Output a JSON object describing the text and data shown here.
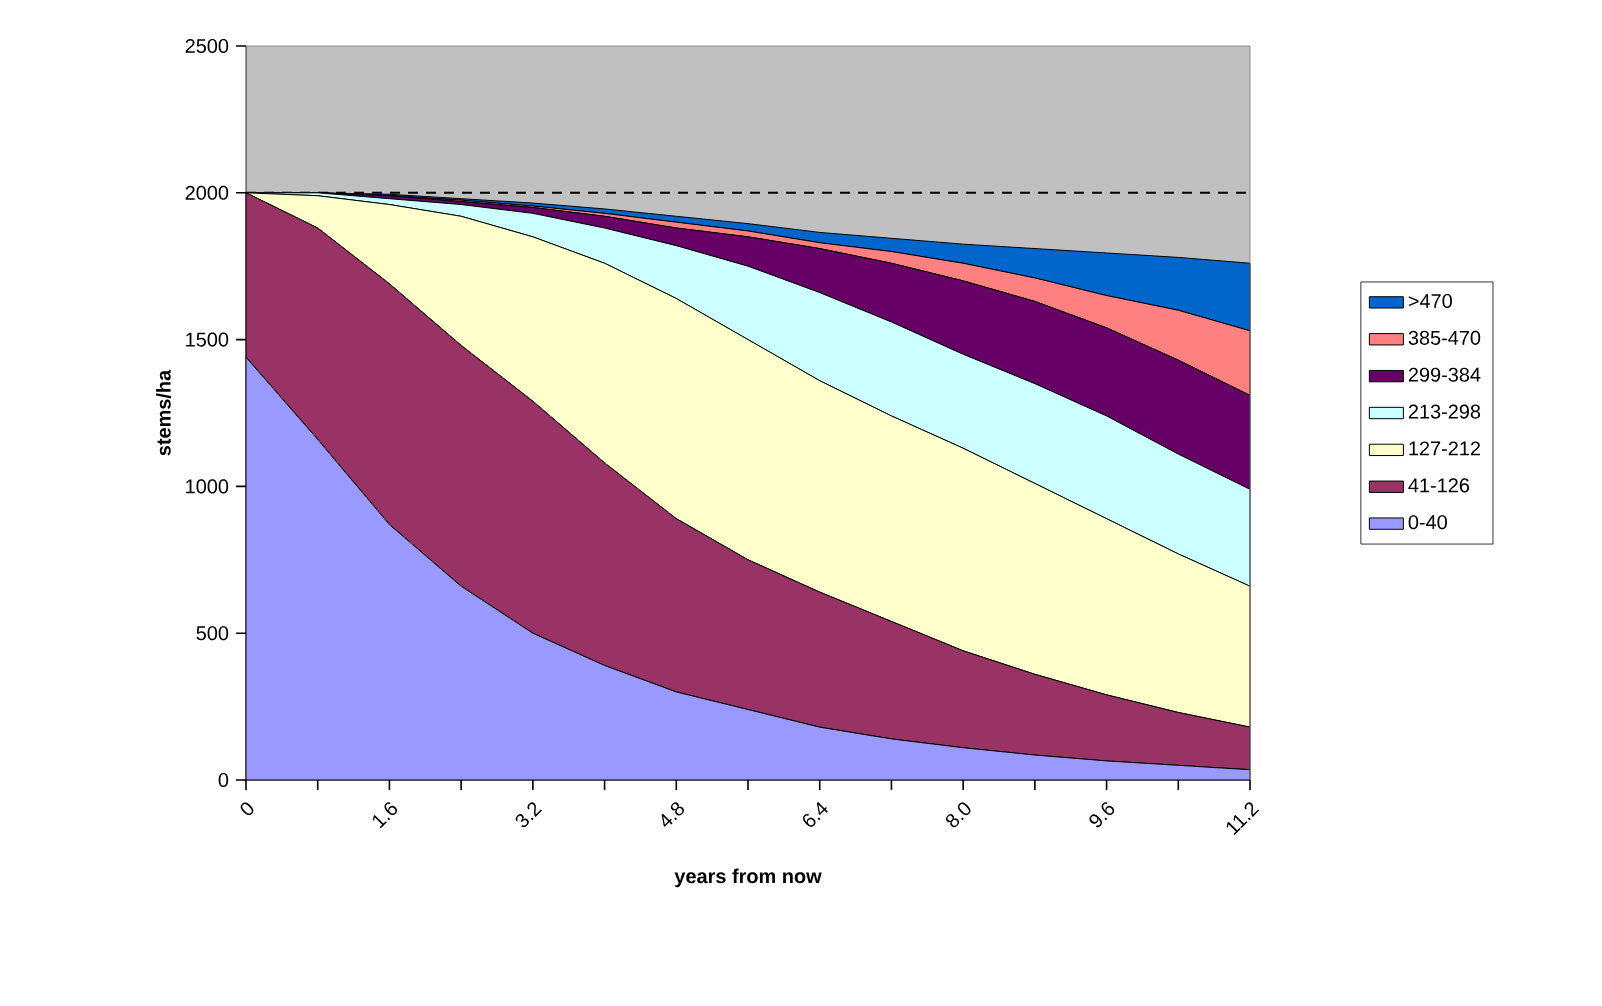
{
  "chart_data": {
    "type": "area",
    "stacked": true,
    "xlabel": "years from now",
    "ylabel": "stems/ha",
    "x": [
      0,
      0.8,
      1.6,
      2.4,
      3.2,
      4.0,
      4.8,
      5.6,
      6.4,
      7.2,
      8.0,
      8.8,
      9.6,
      10.4,
      11.2
    ],
    "series": [
      {
        "name": "0-40",
        "color": "#9999ff",
        "values": [
          1440,
          1160,
          870,
          660,
          500,
          390,
          300,
          240,
          180,
          140,
          110,
          85,
          65,
          50,
          35
        ]
      },
      {
        "name": "41-126",
        "color": "#993366",
        "values": [
          560,
          720,
          820,
          820,
          790,
          690,
          590,
          510,
          460,
          400,
          330,
          275,
          225,
          180,
          145
        ]
      },
      {
        "name": "127-212",
        "color": "#ffffcc",
        "values": [
          0,
          110,
          270,
          440,
          560,
          680,
          750,
          750,
          720,
          700,
          690,
          650,
          600,
          540,
          480
        ]
      },
      {
        "name": "213-298",
        "color": "#ccffff",
        "values": [
          0,
          10,
          20,
          40,
          80,
          120,
          180,
          250,
          300,
          320,
          320,
          340,
          350,
          340,
          330
        ]
      },
      {
        "name": "299-384",
        "color": "#660066",
        "values": [
          0,
          0,
          10,
          10,
          20,
          40,
          60,
          100,
          150,
          200,
          250,
          280,
          300,
          320,
          320
        ]
      },
      {
        "name": "385-470",
        "color": "#ff8080",
        "values": [
          0,
          0,
          0,
          5,
          5,
          10,
          20,
          20,
          20,
          40,
          60,
          80,
          110,
          170,
          220
        ]
      },
      {
        "name": ">470",
        "color": "#0066cc",
        "values": [
          0,
          0,
          5,
          5,
          10,
          15,
          20,
          25,
          35,
          45,
          65,
          100,
          145,
          180,
          230
        ]
      }
    ],
    "xlim": [
      0,
      11.2
    ],
    "xticks": [
      0,
      {
        "value": 0.8,
        "label": null
      },
      1.6,
      {
        "value": 2.4,
        "label": null
      },
      3.2,
      {
        "value": 4.0,
        "label": null
      },
      4.8,
      {
        "value": 5.6,
        "label": null
      },
      6.4,
      {
        "value": 7.2,
        "label": null
      },
      {
        "value": 8.0,
        "label": "8.0"
      },
      {
        "value": 8.8,
        "label": null
      },
      9.6,
      {
        "value": 10.4,
        "label": null
      },
      11.2
    ],
    "ylim": [
      0,
      2500
    ],
    "yticks": [
      0,
      500,
      1000,
      1500,
      2000,
      2500
    ],
    "ref_lines": [
      {
        "axis": "y",
        "value": 2000,
        "color": "#000000",
        "line_style": "dashed"
      }
    ],
    "legend": "right",
    "grid": false,
    "marker": "none"
  }
}
